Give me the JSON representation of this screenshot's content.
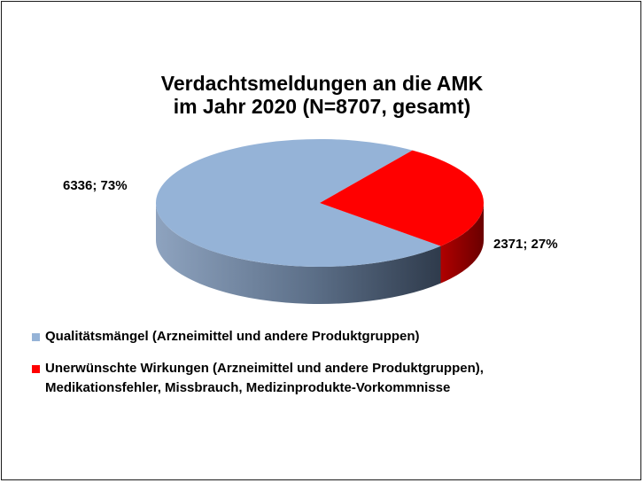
{
  "chart_data": {
    "type": "pie",
    "title_lines": [
      "Verdachtsmeldungen an die AMK",
      "im Jahr 2020 (N=8707, gesamt)"
    ],
    "slices": [
      {
        "label": "Qualitätsmängel (Arzneimittel und andere Produktgruppen)",
        "value": 6336,
        "percent": 73,
        "data_label": "6336; 73%",
        "color": "#95b3d7",
        "side_color_dark": "#3b4b61"
      },
      {
        "label": "Unerwünschte Wirkungen (Arzneimittel und andere Produktgruppen),\nMedikationsfehler, Missbrauch, Medizinprodukte-Vorkommnisse",
        "value": 2371,
        "percent": 27,
        "data_label": "2371; 27%",
        "color": "#ff0000",
        "side_color_dark": "#7a0000"
      }
    ],
    "style": "3d-pie",
    "legend_position": "bottom"
  }
}
